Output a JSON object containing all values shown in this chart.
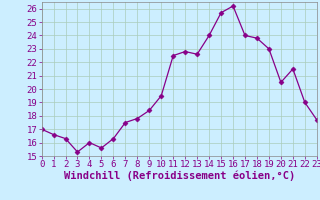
{
  "x": [
    0,
    1,
    2,
    3,
    4,
    5,
    6,
    7,
    8,
    9,
    10,
    11,
    12,
    13,
    14,
    15,
    16,
    17,
    18,
    19,
    20,
    21,
    22,
    23
  ],
  "y": [
    17.0,
    16.6,
    16.3,
    15.3,
    16.0,
    15.6,
    16.3,
    17.5,
    17.8,
    18.4,
    19.5,
    22.5,
    22.8,
    22.6,
    24.0,
    25.7,
    26.2,
    24.0,
    23.8,
    23.0,
    20.5,
    21.5,
    19.0,
    17.7
  ],
  "xlim": [
    0,
    23
  ],
  "ylim": [
    15,
    26.5
  ],
  "yticks": [
    15,
    16,
    17,
    18,
    19,
    20,
    21,
    22,
    23,
    24,
    25,
    26
  ],
  "xticks": [
    0,
    1,
    2,
    3,
    4,
    5,
    6,
    7,
    8,
    9,
    10,
    11,
    12,
    13,
    14,
    15,
    16,
    17,
    18,
    19,
    20,
    21,
    22,
    23
  ],
  "xlabel": "Windchill (Refroidissement éolien,°C)",
  "line_color": "#880088",
  "marker": "D",
  "marker_size": 2.5,
  "bg_color": "#cceeff",
  "grid_color": "#aaccbb",
  "tick_label_color": "#880088",
  "xlabel_color": "#880088",
  "tick_fontsize": 6.5,
  "xlabel_fontsize": 7.5
}
